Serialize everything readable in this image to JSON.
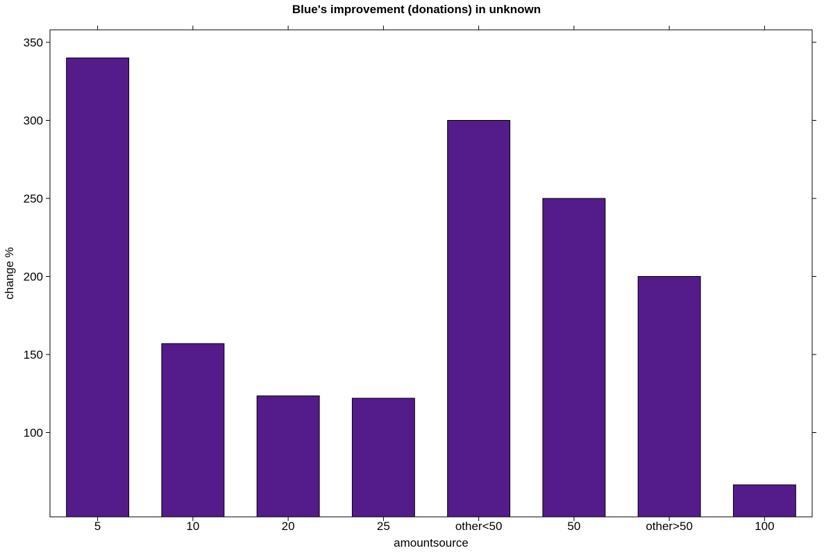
{
  "chart_data": {
    "type": "bar",
    "title": "Blue's improvement (donations) in unknown",
    "xlabel": "amountsource",
    "ylabel": "change %",
    "categories": [
      "5",
      "10",
      "20",
      "25",
      "other<50",
      "50",
      "other>50",
      "100"
    ],
    "values": [
      340,
      157,
      123.5,
      122,
      300,
      250,
      200,
      66.5
    ],
    "ylim": [
      46,
      358
    ],
    "yticks": [
      100,
      150,
      200,
      250,
      300,
      350
    ],
    "grid": false,
    "bar_color": "#541b8a",
    "bar_edge_color": "#000000"
  }
}
